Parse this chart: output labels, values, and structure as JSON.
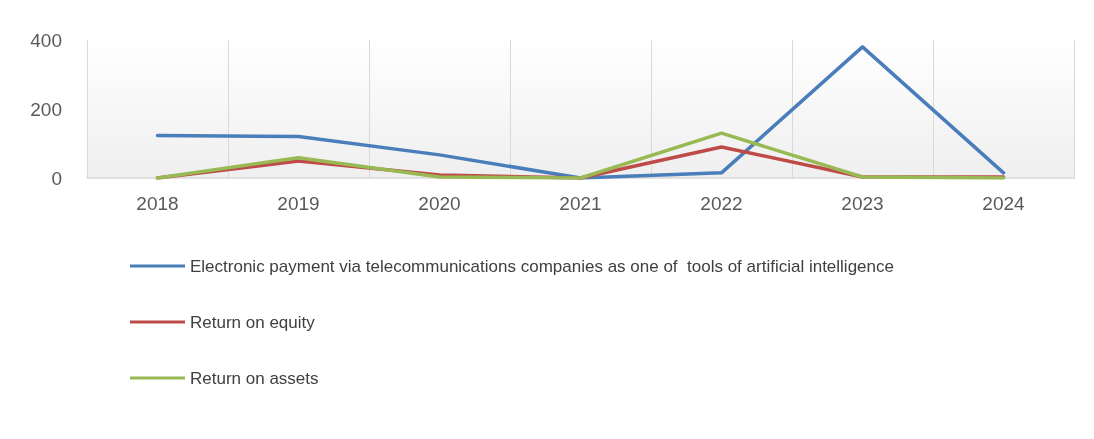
{
  "chart_data": {
    "type": "line",
    "categories": [
      "2018",
      "2019",
      "2020",
      "2021",
      "2022",
      "2023",
      "2024"
    ],
    "series": [
      {
        "name": "Electronic payment via telecommunications companies as one of  tools of artificial intelligence",
        "color": "#4a7ebb",
        "values": [
          123,
          120,
          67,
          0,
          15,
          380,
          15
        ]
      },
      {
        "name": "Return on equity",
        "color": "#be4b48",
        "values": [
          0,
          49,
          9,
          0,
          90,
          3,
          3
        ]
      },
      {
        "name": "Return on assets",
        "color": "#98b954",
        "values": [
          0,
          59,
          3,
          0,
          130,
          3,
          0
        ]
      }
    ],
    "ylim": [
      0,
      400
    ],
    "yticks": [
      0,
      200,
      400
    ],
    "grid": "x",
    "legend": "bottom",
    "marker": "none",
    "line_style": "solid"
  }
}
